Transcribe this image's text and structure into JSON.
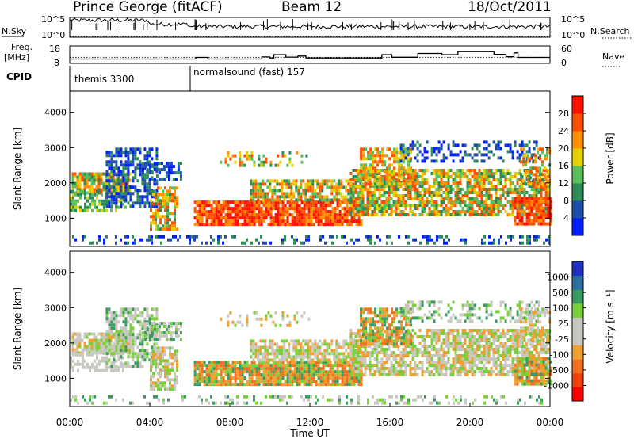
{
  "header": {
    "station": "Prince George (fitACF)",
    "beam": "Beam 12",
    "date": "18/Oct/2011"
  },
  "side_labels": {
    "nsky": "N.Sky",
    "nsearch": "N.Search",
    "freq_line1": "Freq.",
    "freq_line2": "[MHz]",
    "nave": "Nave",
    "cpid": "CPID"
  },
  "cpid_segments": [
    {
      "label": "themis 3300",
      "start_hour": 0
    },
    {
      "label": "normalsound (fast) 157",
      "start_hour": 6
    }
  ],
  "colors": {
    "power_scale": [
      "#0020ff",
      "#1f4fa8",
      "#2e8b57",
      "#5abf5a",
      "#e3d000",
      "#ff9000",
      "#ff5000",
      "#ff1000"
    ],
    "velocity_scale": [
      "#2030c0",
      "#2c6fa0",
      "#3a9a60",
      "#7ad03a",
      "#c8c8c0",
      "#c8c8c0",
      "#f0a030",
      "#f07020",
      "#f04010",
      "#ff0000"
    ],
    "ground_scatter": "#c8c8c0"
  },
  "chart_data": [
    {
      "name": "nsky-nsearch",
      "type": "line",
      "x_range_hours": [
        0,
        24
      ],
      "y_ticks_left": [
        "10^5",
        "10^0"
      ],
      "y_ticks_right": [
        "10^5",
        "10^0"
      ]
    },
    {
      "name": "freq-nave",
      "type": "line",
      "x_range_hours": [
        0,
        24
      ],
      "y_ticks_left": [
        "18",
        "8"
      ],
      "y_ticks_right": [
        "60",
        "0"
      ],
      "freq_steps": [
        {
          "x": 0.0,
          "y": 10.5
        },
        {
          "x": 6.3,
          "y": 10.5
        },
        {
          "x": 6.3,
          "y": 11.4
        },
        {
          "x": 6.9,
          "y": 11.4
        },
        {
          "x": 6.9,
          "y": 10.5
        },
        {
          "x": 9.6,
          "y": 10.5
        },
        {
          "x": 9.6,
          "y": 11.7
        },
        {
          "x": 10.0,
          "y": 11.7
        },
        {
          "x": 10.0,
          "y": 11.1
        },
        {
          "x": 10.2,
          "y": 11.1
        },
        {
          "x": 10.2,
          "y": 13.0
        },
        {
          "x": 10.8,
          "y": 13.0
        },
        {
          "x": 10.8,
          "y": 11.6
        },
        {
          "x": 11.4,
          "y": 11.6
        },
        {
          "x": 11.4,
          "y": 12.2
        },
        {
          "x": 11.8,
          "y": 12.2
        },
        {
          "x": 11.8,
          "y": 11.1
        },
        {
          "x": 15.6,
          "y": 11.1
        },
        {
          "x": 15.6,
          "y": 13.0
        },
        {
          "x": 16.1,
          "y": 13.0
        },
        {
          "x": 16.1,
          "y": 11.5
        },
        {
          "x": 17.4,
          "y": 11.5
        },
        {
          "x": 17.4,
          "y": 13.7
        },
        {
          "x": 18.6,
          "y": 13.7
        },
        {
          "x": 18.6,
          "y": 13.0
        },
        {
          "x": 19.4,
          "y": 13.0
        },
        {
          "x": 19.4,
          "y": 14.9
        },
        {
          "x": 21.2,
          "y": 14.9
        },
        {
          "x": 21.2,
          "y": 13.2
        },
        {
          "x": 21.8,
          "y": 13.2
        },
        {
          "x": 21.8,
          "y": 11.8
        },
        {
          "x": 22.2,
          "y": 11.8
        },
        {
          "x": 22.2,
          "y": 14.0
        },
        {
          "x": 22.4,
          "y": 14.0
        },
        {
          "x": 22.4,
          "y": 11.4
        },
        {
          "x": 24.0,
          "y": 11.4
        }
      ],
      "nave_reference": 11.5
    },
    {
      "name": "power",
      "type": "heatmap",
      "xlabel": "",
      "ylabel": "Slant Range [km]",
      "x_range_hours": [
        0,
        24
      ],
      "y_range_km": [
        200,
        4600
      ],
      "y_ticks": [
        1000,
        2000,
        3000,
        4000
      ],
      "colorbar_label": "Power [dB]",
      "colorbar_ticks": [
        "28",
        "24",
        "20",
        "16",
        "12",
        "8",
        "4"
      ],
      "colorbar_range": [
        0,
        32
      ]
    },
    {
      "name": "velocity",
      "type": "heatmap",
      "xlabel": "Time UT",
      "ylabel": "Slant Range [km]",
      "x_range_hours": [
        0,
        24
      ],
      "y_range_km": [
        200,
        4600
      ],
      "y_ticks": [
        1000,
        2000,
        3000,
        4000
      ],
      "x_ticks": [
        "00:00",
        "04:00",
        "08:00",
        "12:00",
        "16:00",
        "20:00",
        "00:00"
      ],
      "colorbar_label": "Velocity [m s⁻¹]",
      "colorbar_ticks": [
        "1000",
        "500",
        "100",
        "25",
        "-25",
        "-100",
        "-500",
        "-1000"
      ]
    }
  ]
}
